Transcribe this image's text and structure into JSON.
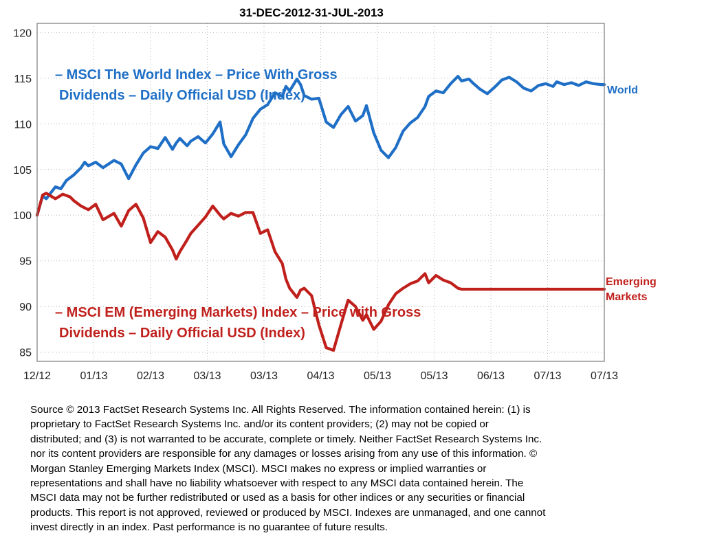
{
  "chart_data": {
    "type": "line",
    "title": "31-DEC-2012-31-JUL-2013",
    "ylim": [
      84,
      121
    ],
    "y_ticks": [
      85,
      90,
      95,
      100,
      105,
      110,
      115,
      120
    ],
    "x_tick_labels": [
      "12/12",
      "01/13",
      "02/13",
      "03/13",
      "03/13",
      "04/13",
      "05/13",
      "05/13",
      "06/13",
      "07/13",
      "07/13"
    ],
    "grid": true,
    "series": [
      {
        "name": "World",
        "legend": [
          "– MSCI The World Index – Price With Gross",
          "Dividends – Daily Official USD (Index)"
        ],
        "color": "#1f6fc6",
        "x": [
          0,
          1.5,
          2.5,
          5,
          6.5,
          8,
          10,
          12,
          13,
          14,
          16,
          18,
          21,
          23,
          25,
          27,
          29,
          31,
          33,
          35,
          37,
          38,
          39,
          41,
          42,
          44,
          46,
          48,
          50,
          51,
          53,
          55,
          57,
          59,
          61,
          63,
          65,
          67,
          68,
          69,
          71,
          72,
          73,
          75,
          77,
          79,
          81,
          83,
          85,
          87,
          89,
          90,
          92,
          94,
          96,
          98,
          100,
          102,
          104,
          106,
          107,
          109,
          111,
          113,
          115,
          116,
          118,
          119,
          121,
          123,
          125,
          127,
          129,
          131,
          133,
          135,
          137,
          139,
          141,
          142,
          144,
          146,
          148,
          150,
          152,
          154,
          155
        ],
        "y": [
          100,
          102.1,
          101.8,
          103.1,
          102.9,
          103.8,
          104.4,
          105.2,
          105.8,
          105.4,
          105.8,
          105.2,
          106.0,
          105.6,
          104.0,
          105.5,
          106.8,
          107.5,
          107.3,
          108.5,
          107.2,
          107.9,
          108.4,
          107.6,
          108.1,
          108.6,
          107.9,
          108.9,
          110.2,
          107.8,
          106.4,
          107.7,
          108.8,
          110.6,
          111.6,
          112.1,
          113.4,
          113.0,
          114.1,
          113.6,
          114.9,
          114.3,
          113.1,
          112.7,
          112.8,
          110.2,
          109.6,
          111.0,
          111.9,
          110.3,
          110.9,
          112.0,
          109.0,
          107.1,
          106.3,
          107.4,
          109.2,
          110.1,
          110.7,
          111.9,
          113.0,
          113.6,
          113.4,
          114.4,
          115.2,
          114.7,
          114.9,
          114.5,
          113.8,
          113.3,
          114.0,
          114.8,
          115.1,
          114.6,
          113.9,
          113.6,
          114.2,
          114.4,
          114.1,
          114.6,
          114.3,
          114.5,
          114.2,
          114.6,
          114.4,
          114.3,
          114.3
        ]
      },
      {
        "name": "Emerging Markets",
        "legend": [
          "– MSCI EM (Emerging Markets) Index – Price with Gross",
          "Dividends – Daily Official USD (Index)"
        ],
        "color": "#c0201c",
        "x": [
          0,
          1.5,
          2.5,
          5,
          7,
          9,
          10,
          12,
          14,
          16,
          18,
          21,
          23,
          25,
          27,
          29,
          31,
          33,
          35,
          37,
          38,
          39,
          41,
          42,
          44,
          46,
          48,
          50,
          51,
          53,
          55,
          57,
          59,
          61,
          63,
          65,
          67,
          68,
          69,
          71,
          72,
          73,
          75,
          77,
          79,
          81,
          83,
          85,
          87,
          89,
          90,
          92,
          94,
          96,
          98,
          100,
          102,
          104,
          106,
          107,
          109,
          111,
          113,
          115,
          116,
          118,
          119,
          121,
          123,
          125,
          127,
          129,
          131,
          133,
          135,
          137,
          139,
          141,
          142,
          144,
          146,
          148,
          150,
          152,
          154,
          155
        ],
        "y": [
          100,
          102.2,
          102.4,
          101.8,
          102.3,
          102.0,
          101.6,
          101.0,
          100.6,
          101.2,
          99.5,
          100.2,
          98.8,
          100.5,
          101.2,
          99.7,
          97.0,
          98.2,
          97.6,
          96.2,
          95.2,
          96.0,
          97.3,
          98.0,
          98.9,
          99.8,
          101.0,
          100.0,
          99.6,
          100.2,
          99.9,
          100.3,
          100.3,
          98.0,
          98.4,
          96.0,
          94.7,
          93.0,
          92.0,
          91.0,
          91.8,
          92.0,
          91.2,
          88.0,
          85.5,
          85.2,
          88.0,
          90.7,
          90.0,
          88.5,
          89.1,
          87.5,
          88.4,
          90.2,
          91.4,
          92.0,
          92.5,
          92.8,
          93.6,
          92.6,
          93.4,
          92.9,
          92.6,
          92.0,
          91.9,
          91.9,
          91.9,
          91.9,
          91.9,
          91.9,
          91.9,
          91.9,
          91.9,
          91.9,
          91.9,
          91.9,
          91.9,
          91.9,
          91.9,
          91.9,
          91.9,
          91.9,
          91.9,
          91.9,
          91.9,
          91.9
        ]
      }
    ]
  },
  "footnote_lines": [
    "Source © 2013 FactSet Research Systems Inc. All Rights Reserved.  The information contained herein:  (1) is",
    "proprietary to FactSet Research Systems Inc. and/or its content providers; (2) may not be copied or",
    "distributed; and (3) is not warranted to be accurate, complete or timely. Neither FactSet Research Systems Inc.",
    "nor its content providers are responsible for any damages or losses arising from any use of this information. ©",
    "Morgan Stanley Emerging Markets Index (MSCI).  MSCI makes no express or implied warranties or",
    "representations and shall have no liability whatsoever with respect to any MSCI data contained herein. The",
    "MSCI data may not be further redistributed or used as a basis for other indices or any securities or financial",
    "products. This report is not approved, reviewed  or produced by MSCI. Indexes are unmanaged, and one cannot",
    "invest directly in an index. Past performance is no guarantee of future results."
  ]
}
